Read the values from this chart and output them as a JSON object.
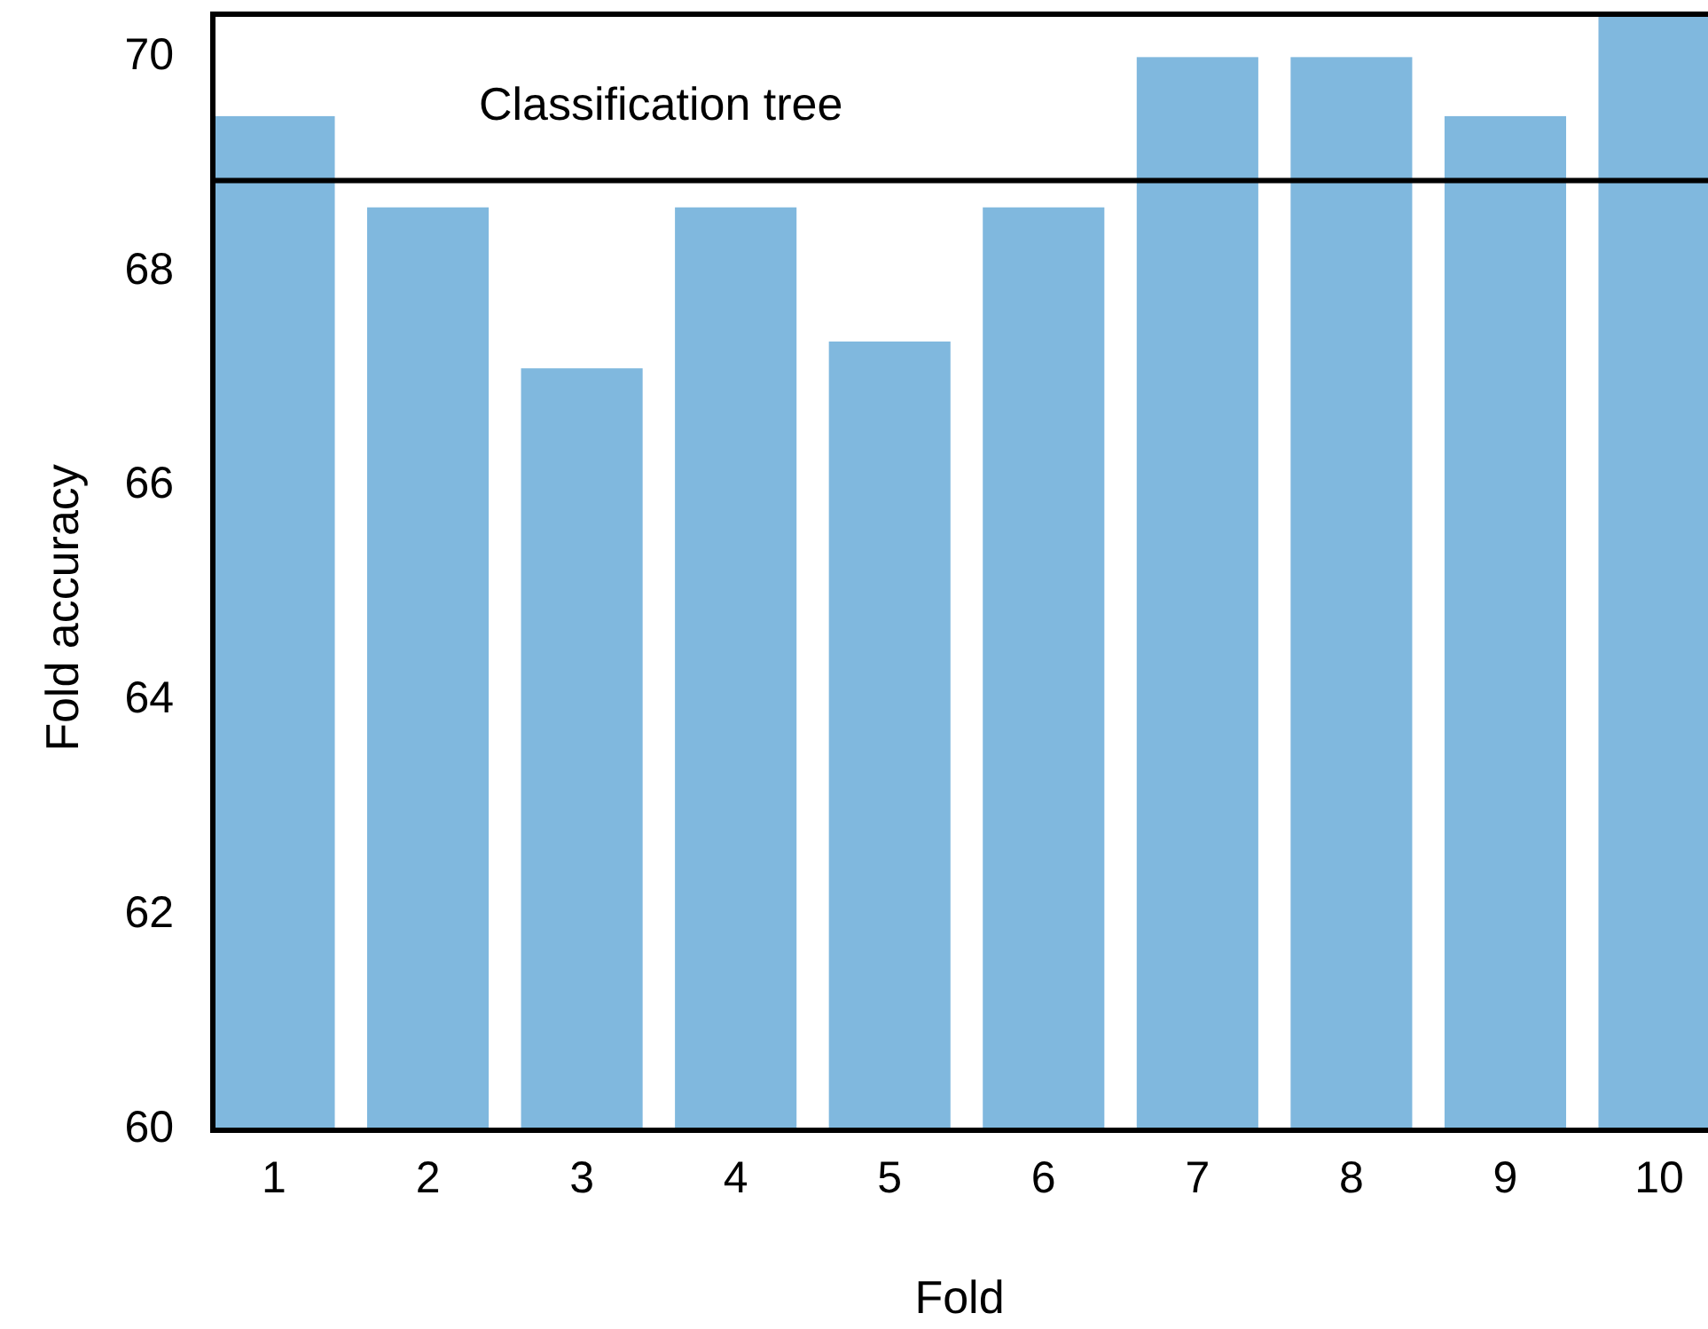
{
  "chart_data": {
    "type": "bar",
    "xlabel": "Fold",
    "ylabel": "Fold accuracy",
    "categories": [
      "1",
      "2",
      "3",
      "4",
      "5",
      "6",
      "7",
      "8",
      "9",
      "10"
    ],
    "values": [
      69.45,
      68.6,
      67.1,
      68.6,
      67.35,
      68.6,
      70,
      70,
      69.45,
      70.4
    ],
    "color": "#80b8de",
    "ylim": [
      60,
      70.4
    ],
    "yticks": [
      60,
      62,
      64,
      66,
      68,
      70
    ],
    "grid": false,
    "ref_lines": [
      {
        "axis": "y",
        "value": 68.85,
        "label": "Classification tree",
        "color": "#000000"
      }
    ]
  }
}
